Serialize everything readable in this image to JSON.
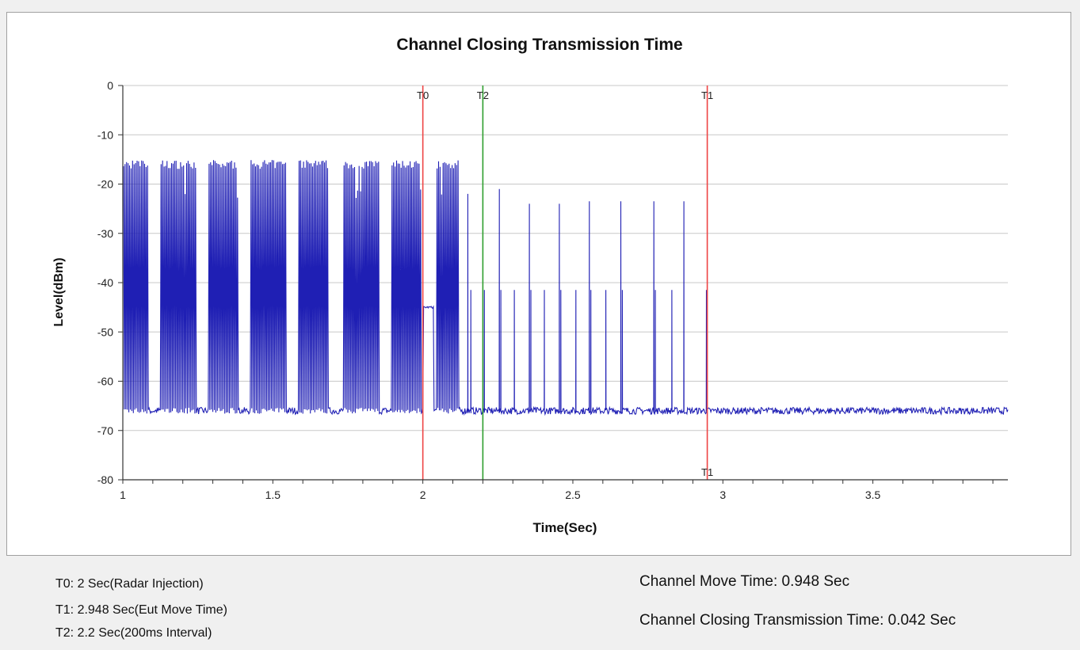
{
  "chart_data": {
    "type": "line",
    "title": "Channel Closing Transmission Time",
    "xlabel": "Time(Sec)",
    "ylabel": "Level(dBm)",
    "xlim": [
      1,
      3.95
    ],
    "ylim": [
      -80,
      0
    ],
    "x_ticks": [
      1,
      1.5,
      2,
      2.5,
      3,
      3.5
    ],
    "x_tick_labels": [
      "1",
      "1.5",
      "2",
      "2.5",
      "3",
      "3.5"
    ],
    "y_ticks": [
      0,
      -10,
      -20,
      -30,
      -40,
      -50,
      -60,
      -70,
      -80
    ],
    "y_tick_labels": [
      "0",
      "-10",
      "-20",
      "-30",
      "-40",
      "-50",
      "-60",
      "-70",
      "-80"
    ],
    "grid": true,
    "series": [
      {
        "color": "#1f1fb4",
        "noise_floor": -66,
        "burst_groups": [
          {
            "x": [
              1.0,
              1.085
            ],
            "level": -16
          },
          {
            "x": [
              1.125,
              1.245
            ],
            "level": -16
          },
          {
            "x": [
              1.285,
              1.385
            ],
            "level": -16
          },
          {
            "x": [
              1.425,
              1.545
            ],
            "level": -16
          },
          {
            "x": [
              1.585,
              1.685
            ],
            "level": -16
          },
          {
            "x": [
              1.735,
              1.855
            ],
            "level": -16
          },
          {
            "x": [
              1.895,
              1.995
            ],
            "level": -16
          },
          {
            "x": [
              2.045,
              2.12
            ],
            "level": -16
          }
        ],
        "plateau": {
          "x": [
            2.0,
            2.035
          ],
          "level": -45
        },
        "spikes": [
          {
            "x": 2.15,
            "y": -22
          },
          {
            "x": 2.16,
            "y": -41.5
          },
          {
            "x": 2.205,
            "y": -41.5
          },
          {
            "x": 2.255,
            "y": -21
          },
          {
            "x": 2.26,
            "y": -41.5
          },
          {
            "x": 2.305,
            "y": -41.5
          },
          {
            "x": 2.355,
            "y": -24
          },
          {
            "x": 2.36,
            "y": -41.5
          },
          {
            "x": 2.405,
            "y": -41.5
          },
          {
            "x": 2.455,
            "y": -24
          },
          {
            "x": 2.46,
            "y": -41.5
          },
          {
            "x": 2.51,
            "y": -41.5
          },
          {
            "x": 2.555,
            "y": -23.5
          },
          {
            "x": 2.56,
            "y": -41.5
          },
          {
            "x": 2.61,
            "y": -41.5
          },
          {
            "x": 2.66,
            "y": -23.5
          },
          {
            "x": 2.665,
            "y": -41.5
          },
          {
            "x": 2.77,
            "y": -23.5
          },
          {
            "x": 2.775,
            "y": -41.5
          },
          {
            "x": 2.83,
            "y": -41.5
          },
          {
            "x": 2.87,
            "y": -23.5
          },
          {
            "x": 2.945,
            "y": -41.5
          }
        ]
      }
    ],
    "markers": [
      {
        "x": 2.0,
        "color": "#ee4444",
        "top_label": "T0",
        "bottom_label": ""
      },
      {
        "x": 2.2,
        "color": "#2e9e2e",
        "top_label": "T2",
        "bottom_label": ""
      },
      {
        "x": 2.948,
        "color": "#ee4444",
        "top_label": "T1",
        "bottom_label": "T1"
      }
    ]
  },
  "info": {
    "t0": "T0: 2 Sec(Radar Injection)",
    "t1": "T1: 2.948 Sec(Eut Move Time)",
    "t2": "T2: 2.2 Sec(200ms Interval)",
    "move_time": "Channel Move Time: 0.948 Sec",
    "closing_time": "Channel Closing Transmission Time: 0.042 Sec"
  }
}
